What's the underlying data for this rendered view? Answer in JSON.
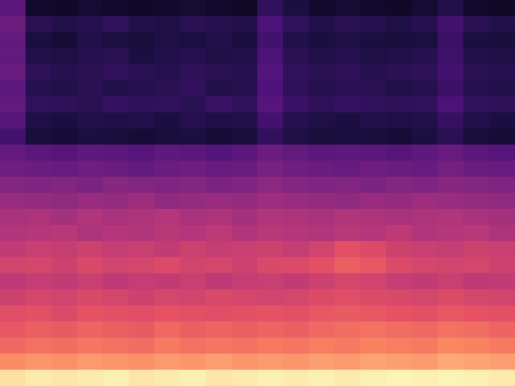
{
  "chart_data": {
    "type": "heatmap",
    "tick_labels": false,
    "color_range": [
      0,
      100
    ],
    "cells": [
      [
        28,
        8,
        7,
        9,
        8,
        7,
        8,
        9,
        8,
        7,
        18,
        12,
        8,
        9,
        8,
        7,
        9,
        14,
        8,
        7
      ],
      [
        32,
        16,
        14,
        15,
        18,
        14,
        13,
        16,
        15,
        14,
        24,
        18,
        14,
        16,
        15,
        13,
        15,
        22,
        16,
        14
      ],
      [
        30,
        12,
        10,
        14,
        12,
        11,
        13,
        12,
        14,
        12,
        22,
        14,
        12,
        13,
        12,
        11,
        12,
        20,
        12,
        11
      ],
      [
        30,
        14,
        13,
        15,
        16,
        12,
        14,
        15,
        13,
        14,
        24,
        16,
        14,
        15,
        13,
        14,
        15,
        21,
        14,
        13
      ],
      [
        31,
        17,
        15,
        16,
        18,
        16,
        15,
        17,
        16,
        15,
        26,
        18,
        16,
        17,
        15,
        16,
        17,
        22,
        16,
        15
      ],
      [
        29,
        15,
        14,
        16,
        14,
        15,
        16,
        18,
        14,
        15,
        25,
        17,
        15,
        16,
        16,
        14,
        15,
        20,
        15,
        14
      ],
      [
        30,
        18,
        17,
        16,
        19,
        17,
        18,
        16,
        20,
        18,
        27,
        20,
        17,
        19,
        18,
        17,
        18,
        24,
        18,
        17
      ],
      [
        27,
        13,
        12,
        14,
        13,
        14,
        12,
        15,
        13,
        14,
        22,
        15,
        13,
        12,
        14,
        13,
        14,
        19,
        14,
        12
      ],
      [
        22,
        11,
        10,
        12,
        11,
        10,
        11,
        12,
        10,
        11,
        18,
        13,
        11,
        12,
        11,
        10,
        12,
        16,
        11,
        10
      ],
      [
        30,
        28,
        27,
        29,
        28,
        27,
        29,
        28,
        26,
        28,
        32,
        30,
        28,
        29,
        28,
        27,
        29,
        31,
        28,
        27
      ],
      [
        33,
        32,
        31,
        33,
        32,
        30,
        32,
        33,
        31,
        32,
        35,
        33,
        32,
        31,
        33,
        32,
        31,
        34,
        32,
        31
      ],
      [
        38,
        37,
        38,
        36,
        39,
        38,
        37,
        38,
        36,
        37,
        40,
        38,
        37,
        38,
        36,
        38,
        37,
        39,
        38,
        37
      ],
      [
        43,
        42,
        41,
        43,
        42,
        44,
        41,
        42,
        43,
        42,
        44,
        43,
        42,
        41,
        43,
        42,
        44,
        43,
        42,
        41
      ],
      [
        47,
        48,
        46,
        49,
        47,
        48,
        50,
        47,
        48,
        46,
        49,
        48,
        47,
        49,
        48,
        47,
        48,
        49,
        47,
        46
      ],
      [
        49,
        50,
        51,
        48,
        50,
        49,
        51,
        50,
        52,
        49,
        51,
        50,
        49,
        51,
        50,
        52,
        49,
        50,
        51,
        48
      ],
      [
        53,
        55,
        54,
        56,
        54,
        55,
        53,
        56,
        54,
        55,
        56,
        54,
        57,
        62,
        60,
        56,
        55,
        54,
        56,
        55
      ],
      [
        57,
        58,
        56,
        59,
        57,
        58,
        60,
        57,
        58,
        56,
        59,
        60,
        62,
        66,
        64,
        60,
        58,
        57,
        58,
        56
      ],
      [
        52,
        54,
        53,
        55,
        52,
        54,
        53,
        55,
        52,
        54,
        55,
        53,
        56,
        58,
        57,
        54,
        53,
        55,
        52,
        53
      ],
      [
        56,
        58,
        57,
        59,
        58,
        56,
        58,
        57,
        59,
        58,
        57,
        58,
        60,
        61,
        60,
        59,
        58,
        60,
        58,
        57
      ],
      [
        61,
        62,
        60,
        63,
        62,
        61,
        63,
        62,
        61,
        62,
        63,
        62,
        64,
        65,
        64,
        63,
        62,
        64,
        63,
        62
      ],
      [
        64,
        66,
        65,
        67,
        66,
        65,
        68,
        66,
        67,
        66,
        67,
        66,
        68,
        69,
        70,
        69,
        68,
        70,
        69,
        67
      ],
      [
        68,
        70,
        69,
        71,
        70,
        69,
        72,
        70,
        71,
        70,
        72,
        71,
        73,
        72,
        74,
        73,
        72,
        75,
        74,
        72
      ],
      [
        76,
        78,
        77,
        79,
        78,
        77,
        79,
        78,
        80,
        78,
        79,
        78,
        80,
        79,
        81,
        80,
        79,
        82,
        81,
        80
      ],
      [
        94,
        96,
        95,
        96,
        97,
        95,
        96,
        97,
        95,
        96,
        97,
        96,
        97,
        96,
        97,
        98,
        97,
        98,
        97,
        96
      ]
    ]
  }
}
